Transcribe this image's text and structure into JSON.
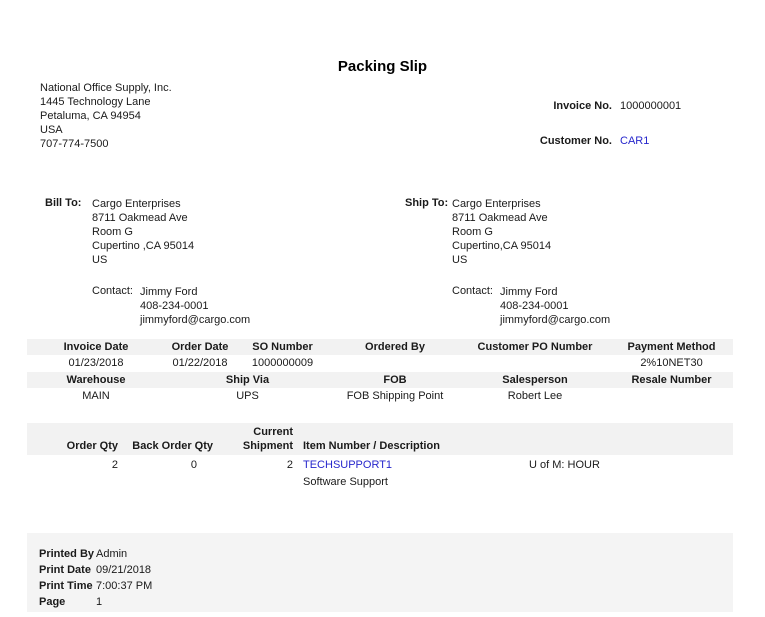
{
  "title": "Packing Slip",
  "company": {
    "name": "National Office Supply, Inc.",
    "lines": [
      "1445 Technology Lane",
      "Petaluma, CA 94954",
      "USA",
      "707-774-7500"
    ]
  },
  "header_fields": {
    "invoice_no_label": "Invoice No.",
    "invoice_no": "1000000001",
    "customer_no_label": "Customer No.",
    "customer_no": "CAR1"
  },
  "bill_to": {
    "label": "Bill To:",
    "lines": [
      "Cargo Enterprises",
      "8711 Oakmead Ave",
      "Room G",
      "Cupertino ,CA 95014",
      "US"
    ],
    "contact_label": "Contact:",
    "contact_lines": [
      "Jimmy Ford",
      "408-234-0001",
      "jimmyford@cargo.com"
    ]
  },
  "ship_to": {
    "label": "Ship To:",
    "lines": [
      "Cargo Enterprises",
      "8711 Oakmead Ave",
      "Room G",
      "Cupertino,CA 95014",
      "US"
    ],
    "contact_label": "Contact:",
    "contact_lines": [
      "Jimmy Ford",
      "408-234-0001",
      "jimmyford@cargo.com"
    ]
  },
  "info_table": {
    "row1_headers": [
      "Invoice Date",
      "Order Date",
      "SO Number",
      "Ordered By",
      "Customer PO Number",
      "Payment Method"
    ],
    "row1_values": [
      "01/23/2018",
      "01/22/2018",
      "1000000009",
      "",
      "",
      "2%10NET30"
    ],
    "row2_headers": [
      "Warehouse",
      "Ship Via",
      "FOB",
      "Salesperson",
      "Resale Number"
    ],
    "row2_values": [
      "MAIN",
      "UPS",
      "FOB Shipping Point",
      "Robert Lee",
      ""
    ]
  },
  "items_table": {
    "headers": {
      "order_qty": "Order Qty",
      "back_order_qty": "Back Order Qty",
      "current_shipment_line1": "Current",
      "current_shipment_line2": "Shipment",
      "item_number_description": "Item Number / Description"
    },
    "rows": [
      {
        "order_qty": "2",
        "back_order_qty": "0",
        "current_shipment": "2",
        "item_number": "TECHSUPPORT1",
        "uom": "U of M: HOUR",
        "description": "Software Support"
      }
    ]
  },
  "footer": {
    "rows": [
      {
        "label": "Printed By",
        "value": "Admin"
      },
      {
        "label": "Print Date",
        "value": "09/21/2018"
      },
      {
        "label": "Print Time",
        "value": "7:00:37 PM"
      },
      {
        "label": "Page",
        "value": "1"
      }
    ]
  },
  "colors": {
    "link_blue": "#2626cc",
    "header_bar_gray": "#f2f2f2",
    "footer_gray": "#f4f4f4",
    "text": "#1a1a1a"
  }
}
